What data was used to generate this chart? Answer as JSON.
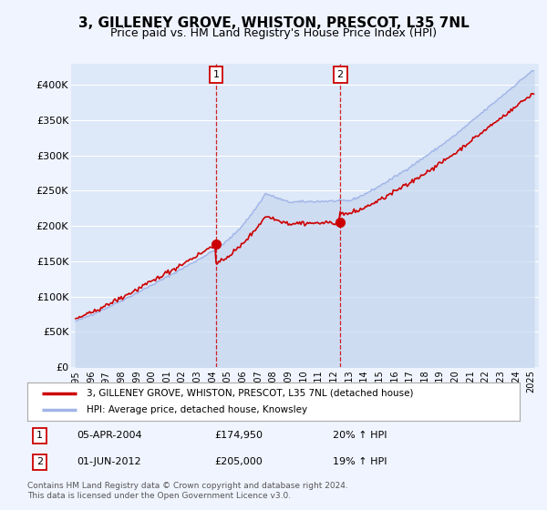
{
  "title": "3, GILLENEY GROVE, WHISTON, PRESCOT, L35 7NL",
  "subtitle": "Price paid vs. HM Land Registry's House Price Index (HPI)",
  "ylim": [
    0,
    420000
  ],
  "yticks": [
    0,
    50000,
    100000,
    150000,
    200000,
    250000,
    300000,
    350000,
    400000
  ],
  "ytick_labels": [
    "£0",
    "£50K",
    "£100K",
    "£150K",
    "£200K",
    "£250K",
    "£300K",
    "£350K",
    "£400K"
  ],
  "background_color": "#f0f4ff",
  "title_fontsize": 11,
  "subtitle_fontsize": 9,
  "sale1_year": 2004,
  "sale1_month": 3,
  "sale1_price": 174950,
  "sale1_label": "1",
  "sale1_text_date": "05-APR-2004",
  "sale1_text_price": "£174,950",
  "sale1_text_hpi": "20% ↑ HPI",
  "sale2_year": 2012,
  "sale2_month": 5,
  "sale2_price": 205000,
  "sale2_label": "2",
  "sale2_text_date": "01-JUN-2012",
  "sale2_text_price": "£205,000",
  "sale2_text_hpi": "19% ↑ HPI",
  "legend_line1": "3, GILLENEY GROVE, WHISTON, PRESCOT, L35 7NL (detached house)",
  "legend_line2": "HPI: Average price, detached house, Knowsley",
  "footnote": "Contains HM Land Registry data © Crown copyright and database right 2024.\nThis data is licensed under the Open Government Licence v3.0.",
  "hpi_color": "#a0b4e8",
  "hpi_fill_color": "#c8d8f0",
  "price_color": "#cc0000",
  "marker_color": "#cc0000",
  "marker_box_color": "#cc0000"
}
